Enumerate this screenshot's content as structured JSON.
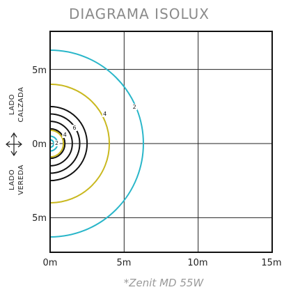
{
  "chart_data": {
    "type": "isolux",
    "title": "DIAGRAMA ISOLUX",
    "caption": "*Zenit MD 55W",
    "side_label_top": [
      "LADO",
      "CALZADA"
    ],
    "side_label_bottom": [
      "LADO",
      "VEREDA"
    ],
    "x_ticks": [
      "0m",
      "5m",
      "10m",
      "15m"
    ],
    "y_ticks": [
      "5m",
      "0m",
      "5m"
    ],
    "xlim": [
      0,
      15
    ],
    "ylim": [
      -7,
      7.5
    ],
    "grid": true,
    "contours": [
      {
        "radius": 0.25,
        "label": "",
        "color": "#29b6c9"
      },
      {
        "radius": 0.5,
        "label": "2",
        "color": "#29b6c9"
      },
      {
        "radius": 1.0,
        "label": "4",
        "color": "#111111"
      },
      {
        "radius": 1.5,
        "label": "6",
        "color": "#111111"
      },
      {
        "radius": 2.0,
        "label": "",
        "color": "#111111"
      },
      {
        "radius": 2.5,
        "label": "",
        "color": "#111111"
      },
      {
        "radius": 0.9,
        "label": "",
        "color": "#c9b81e"
      },
      {
        "radius": 4.0,
        "label": "",
        "color": "#c9b81e"
      },
      {
        "radius": 4.1,
        "label": "4",
        "color": "#c9b81e",
        "partial": true
      },
      {
        "radius": 6.3,
        "label": "2",
        "color": "#29b6c9"
      }
    ]
  }
}
